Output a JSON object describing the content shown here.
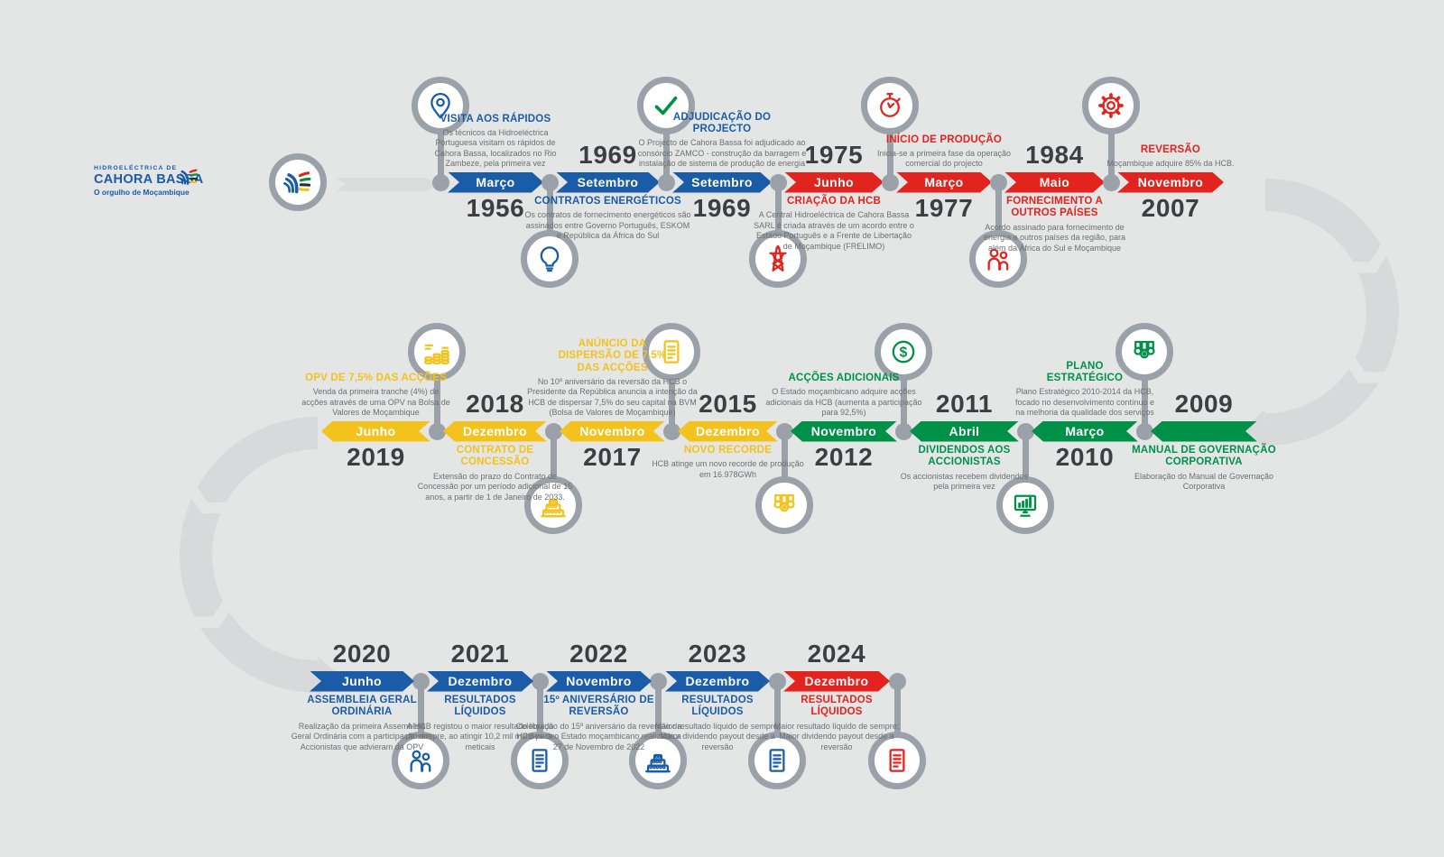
{
  "logo": {
    "line1": "HIDROELÉCTRICA DE",
    "line2": "CAHORA BASSA",
    "tagline": "O orgulho de Moçambique"
  },
  "colors": {
    "blue": "#1A5CA8",
    "red": "#E2231E",
    "green": "#009149",
    "yellow": "#F4C21D",
    "gray": "#9BA1A8",
    "track": "#D8D9DA",
    "background": "#E4E5E5",
    "year_text": "#3E3E41",
    "desc_text": "#6E6F71"
  },
  "timeline": {
    "rows": [
      {
        "flow": "left-to-right",
        "events": [
          {
            "year": "1956",
            "month": "Março",
            "title": "VISITA AOS RÁPIDOS",
            "desc": "Os técnicos da Hidroeléctrica Portuguesa visitam os rápidos de Cahora Bassa, localizados no Rio Zambeze, pela primeira vez",
            "color": "blue",
            "icon": "map-pin",
            "icon_side": "above",
            "text_side": "above"
          },
          {
            "year": "1969",
            "month": "Setembro",
            "title": "CONTRATOS ENERGÉTICOS",
            "desc": "Os contratos de fornecimento energéticos são assinados entre Governo Português, ESKOM e República da África do Sul",
            "color": "blue",
            "icon": "lightbulb",
            "icon_side": "below",
            "text_side": "below"
          },
          {
            "year": "1969",
            "month": "Setembro",
            "title": "ADJUDICAÇÃO DO PROJECTO",
            "desc": "O Projecto de Cahora Bassa foi adjudicado ao consórcio ZAMCO - construção da barragem e instalação de sistema de produção de energia",
            "color": "blue",
            "icon": "check",
            "icon_color": "green",
            "icon_side": "above",
            "text_side": "above"
          },
          {
            "year": "1975",
            "month": "Junho",
            "title": "CRIAÇÃO DA HCB",
            "desc": "A Central Hidroeléctrica de Cahora Bassa SARL é criada através de um acordo entre o Estado Português e a Frente de Libertação de Moçambique (FRELIMO)",
            "color": "red",
            "icon": "power-tower",
            "icon_side": "below",
            "text_side": "below"
          },
          {
            "year": "1977",
            "month": "Março",
            "title": "INÍCIO DE PRODUÇÃO",
            "desc": "Inicia-se a primeira fase da operação comercial do projecto",
            "color": "red",
            "icon": "stopwatch",
            "icon_side": "above",
            "text_side": "above"
          },
          {
            "year": "1984",
            "month": "Maio",
            "title": "FORNECIMENTO A OUTROS PAÍSES",
            "desc": "Acordo assinado para fornecimento de energia a outros países da região, para além da África do Sul e Moçambique",
            "color": "red",
            "icon": "people",
            "icon_side": "below",
            "text_side": "below"
          },
          {
            "year": "2007",
            "month": "Novembro",
            "title": "REVERSÃO",
            "desc": "Moçambique adquire 85% da HCB.",
            "color": "red",
            "icon": "gear",
            "icon_side": "above",
            "text_side": "above"
          }
        ]
      },
      {
        "flow": "right-to-left",
        "events": [
          {
            "year": "2019",
            "month": "Junho",
            "title": "OPV DE 7,5% DAS ACÇÕES",
            "desc": "Venda da primeira tranche (4%) de acções através de uma OPV na Bolsa de Valores de Moçambique",
            "color": "yellow",
            "icon": "coin-stacks",
            "icon_side": "above",
            "text_side": "above"
          },
          {
            "year": "2018",
            "month": "Dezembro",
            "title": "CONTRATO DE CONCESSÃO",
            "desc": "Extensão do prazo do Contrato de Concessão por um período adicional de 15 anos, a partir de 1 de Janeiro de 2033.",
            "color": "yellow",
            "icon": "cake",
            "icon_side": "below",
            "text_side": "below"
          },
          {
            "year": "2017",
            "month": "Novembro",
            "title": "ANÚNCIO DA DISPERSÃO DE 7,5% DAS ACÇÕES",
            "desc": "No 10º aniversário da reversão da HCB o Presidente da República anuncia a intenção da HCB de dispersar 7,5% do seu capital na BVM (Bolsa de Valores de Moçambique)",
            "color": "yellow",
            "icon": "document",
            "icon_side": "above",
            "text_side": "above"
          },
          {
            "year": "2015",
            "month": "Dezembro",
            "title": "NOVO RECORDE",
            "desc": "HCB atinge um novo recorde de produção em 16.978GWh",
            "color": "yellow",
            "icon": "medals",
            "icon_side": "below",
            "text_side": "below"
          },
          {
            "year": "2012",
            "month": "Novembro",
            "title": "ACÇÕES ADICIONAIS",
            "desc": "O Estado moçambicano adquire acções adicionais da HCB (aumenta a participação para 92,5%)",
            "color": "green",
            "icon": "dollar",
            "icon_side": "above",
            "text_side": "above"
          },
          {
            "year": "2011",
            "month": "Abril",
            "title": "DIVIDENDOS AOS ACCIONISTAS",
            "desc": "Os accionistas recebem dividendos pela primeira vez",
            "color": "green",
            "icon": "monitor-chart",
            "icon_side": "below",
            "text_side": "below"
          },
          {
            "year": "2010",
            "month": "Março",
            "title": "PLANO ESTRATÉGICO",
            "desc": "Plano Estratégico 2010-2014 da HCB, focado no desenvolvimento contínuo e na melhoria da qualidade dos serviços",
            "color": "green",
            "icon": "medals",
            "icon_side": "above",
            "text_side": "above"
          },
          {
            "year": "2009",
            "month": "",
            "title": "MANUAL DE GOVERNAÇÃO CORPORATIVA",
            "desc": "Elaboração do Manual de Governação Corporativa",
            "color": "green",
            "icon": null,
            "icon_side": null,
            "text_side": "below"
          }
        ]
      },
      {
        "flow": "left-to-right",
        "events": [
          {
            "year": "2020",
            "month": "Junho",
            "title": "ASSEMBLEIA GERAL ORDINÁRIA",
            "desc": "Realização da primeira Assembleia Geral Ordinária com a participação dos Accionistas que advieram da OPV",
            "color": "blue",
            "icon": "people",
            "icon_side": "below",
            "text_side": "below"
          },
          {
            "year": "2021",
            "month": "Dezembro",
            "title": "RESULTADOS LÍQUIDOS",
            "desc": "A HCB registou o maior resultado líquido de sempre, ao atingir 10,2 mil milhões de meticais",
            "color": "blue",
            "icon": "document",
            "icon_side": "below",
            "text_side": "below"
          },
          {
            "year": "2022",
            "month": "Novembro",
            "title": "15º ANIVERSÁRIO DE REVERSÃO",
            "desc": "Celebração do 15º aniversário da reversão da HCB para o Estado moçambicano realizado a 27 de Novembro de 2022",
            "color": "blue",
            "icon": "cake",
            "icon_side": "below",
            "text_side": "below"
          },
          {
            "year": "2023",
            "month": "Dezembro",
            "title": "RESULTADOS LÍQUIDOS",
            "desc": "Maior resultado líquido de sempre; Maior dividendo payout desde a reversão",
            "color": "blue",
            "icon": "document",
            "icon_side": "below",
            "text_side": "below"
          },
          {
            "year": "2024",
            "month": "Dezembro",
            "title": "RESULTADOS LÍQUIDOS",
            "desc": "Maior resultado líquido de sempre; Maior dividendo payout desde a reversão",
            "color": "red",
            "icon": "document",
            "icon_side": "below",
            "text_side": "below"
          }
        ]
      }
    ]
  }
}
